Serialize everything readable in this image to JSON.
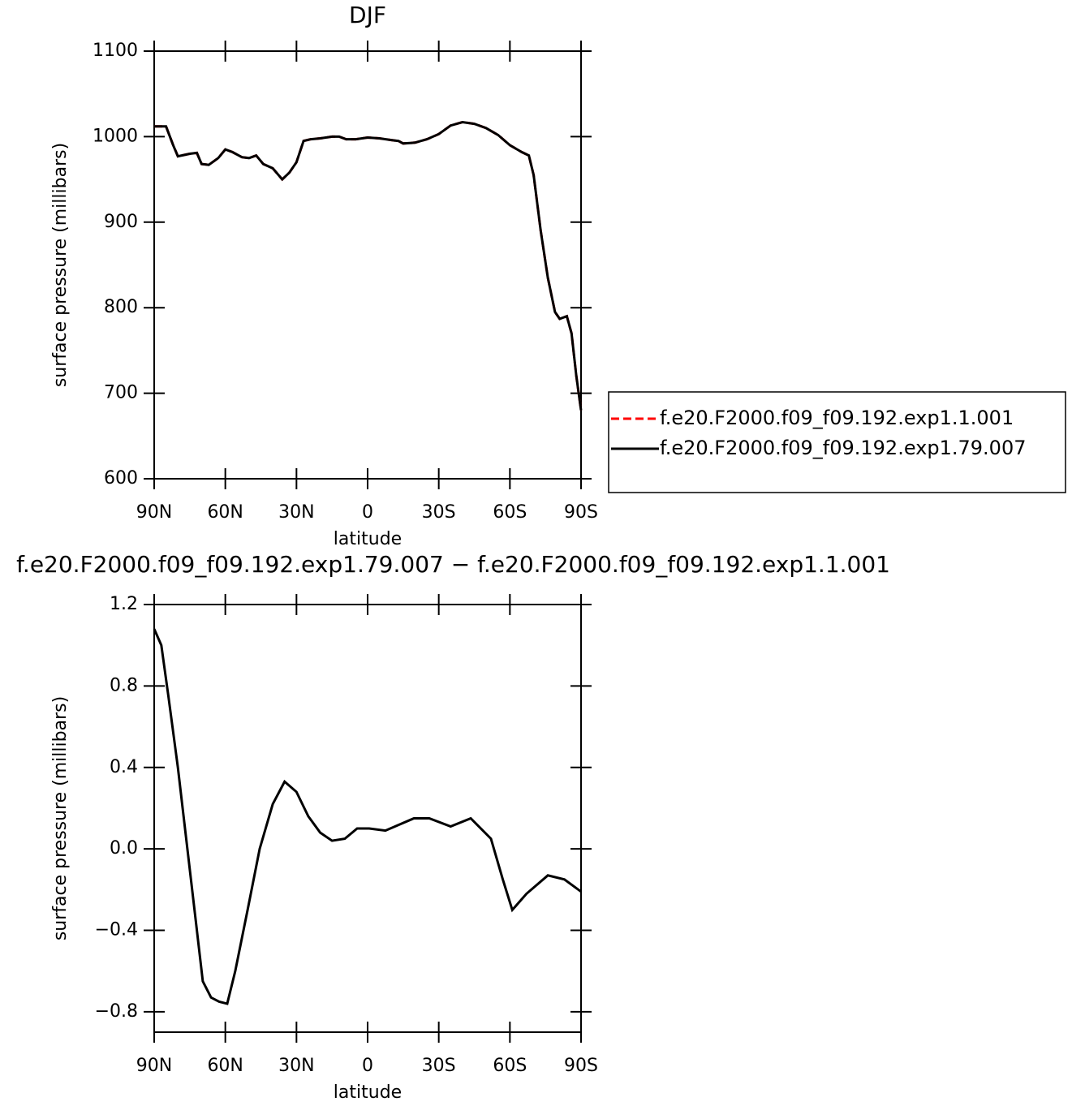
{
  "chart_data": [
    {
      "type": "line",
      "title": "DJF",
      "xlabel": "latitude",
      "ylabel": "surface pressure (millibars)",
      "x": [
        90,
        85,
        82,
        80,
        75,
        72,
        70,
        67,
        63,
        60,
        57,
        53,
        50,
        47,
        44,
        40,
        36,
        33,
        30,
        27,
        24,
        20,
        15,
        12,
        9,
        5,
        0,
        -5,
        -10,
        -13,
        -15,
        -20,
        -25,
        -30,
        -35,
        -40,
        -45,
        -50,
        -55,
        -60,
        -65,
        -68,
        -70,
        -73,
        -76,
        -79,
        -81,
        -84,
        -86,
        -88,
        -90
      ],
      "series": [
        {
          "name": "f.e20.F2000.f09_f09.192.exp1.1.001",
          "color": "#ff0000",
          "style": "dashed",
          "values": [
            1012,
            1012,
            990,
            977,
            980,
            981,
            968,
            967,
            975,
            985,
            982,
            976,
            975,
            978,
            968,
            963,
            950,
            958,
            970,
            995,
            997,
            998,
            1000,
            1000,
            997,
            997,
            999,
            998,
            996,
            995,
            992,
            993,
            997,
            1003,
            1013,
            1017,
            1015,
            1010,
            1002,
            990,
            982,
            978,
            955,
            890,
            835,
            795,
            787,
            790,
            770,
            720,
            680
          ]
        },
        {
          "name": "f.e20.F2000.f09_f09.192.exp1.79.007",
          "color": "#000000",
          "style": "solid",
          "values": [
            1012,
            1012,
            990,
            977,
            980,
            981,
            968,
            967,
            975,
            985,
            982,
            976,
            975,
            978,
            968,
            963,
            950,
            958,
            970,
            995,
            997,
            998,
            1000,
            1000,
            997,
            997,
            999,
            998,
            996,
            995,
            992,
            993,
            997,
            1003,
            1013,
            1017,
            1015,
            1010,
            1002,
            990,
            982,
            978,
            955,
            890,
            835,
            795,
            787,
            790,
            770,
            720,
            680
          ]
        }
      ],
      "xlim": [
        90,
        -90
      ],
      "xticks": [
        {
          "value": 90,
          "label": "90N"
        },
        {
          "value": 60,
          "label": "60N"
        },
        {
          "value": 30,
          "label": "30N"
        },
        0,
        {
          "value": -30,
          "label": "30S"
        },
        {
          "value": -60,
          "label": "60S"
        },
        {
          "value": -90,
          "label": "90S"
        }
      ],
      "ylim": [
        600,
        1100
      ],
      "yticks": [
        600,
        700,
        800,
        900,
        1000,
        1100
      ],
      "legend": "right"
    },
    {
      "type": "line",
      "title": "f.e20.F2000.f09_f09.192.exp1.79.007 − f.e20.F2000.f09_f09.192.exp1.1.001",
      "xlabel": "latitude",
      "ylabel": "surface pressure (millibars)",
      "x": [
        90,
        87,
        84,
        80,
        76,
        73,
        69.5,
        66,
        62.6,
        59.2,
        55.8,
        50.6,
        45.5,
        40,
        35,
        30,
        25,
        20,
        15,
        9.6,
        4.4,
        -0.7,
        -7.5,
        -19.5,
        -26,
        -35,
        -43.5,
        -52,
        -57,
        -61,
        -67,
        -76,
        -83,
        -90
      ],
      "series": [
        {
          "name": "f.e20.F2000.f09_f09.192.exp1.79.007 − f.e20.F2000.f09_f09.192.exp1.1.001",
          "color": "#000000",
          "style": "solid",
          "values": [
            1.08,
            1.0,
            0.75,
            0.4,
            0.0,
            -0.3,
            -0.65,
            -0.73,
            -0.75,
            -0.76,
            -0.6,
            -0.3,
            0.0,
            0.22,
            0.33,
            0.28,
            0.16,
            0.08,
            0.04,
            0.05,
            0.1,
            0.1,
            0.09,
            0.15,
            0.15,
            0.11,
            0.15,
            0.05,
            -0.15,
            -0.3,
            -0.22,
            -0.13,
            -0.15,
            -0.21
          ]
        }
      ],
      "xlim": [
        90,
        -90
      ],
      "xticks": [
        {
          "value": 90,
          "label": "90N"
        },
        {
          "value": 60,
          "label": "60N"
        },
        {
          "value": 30,
          "label": "30N"
        },
        0,
        {
          "value": -30,
          "label": "30S"
        },
        {
          "value": -60,
          "label": "60S"
        },
        {
          "value": -90,
          "label": "90S"
        }
      ],
      "ylim": [
        -0.9,
        1.2
      ],
      "yticks": [
        {
          "value": -0.8,
          "label": "−0.8"
        },
        {
          "value": -0.4,
          "label": "−0.4"
        },
        {
          "value": 0,
          "label": "0.0"
        },
        0.4,
        0.8,
        1.2
      ]
    }
  ]
}
